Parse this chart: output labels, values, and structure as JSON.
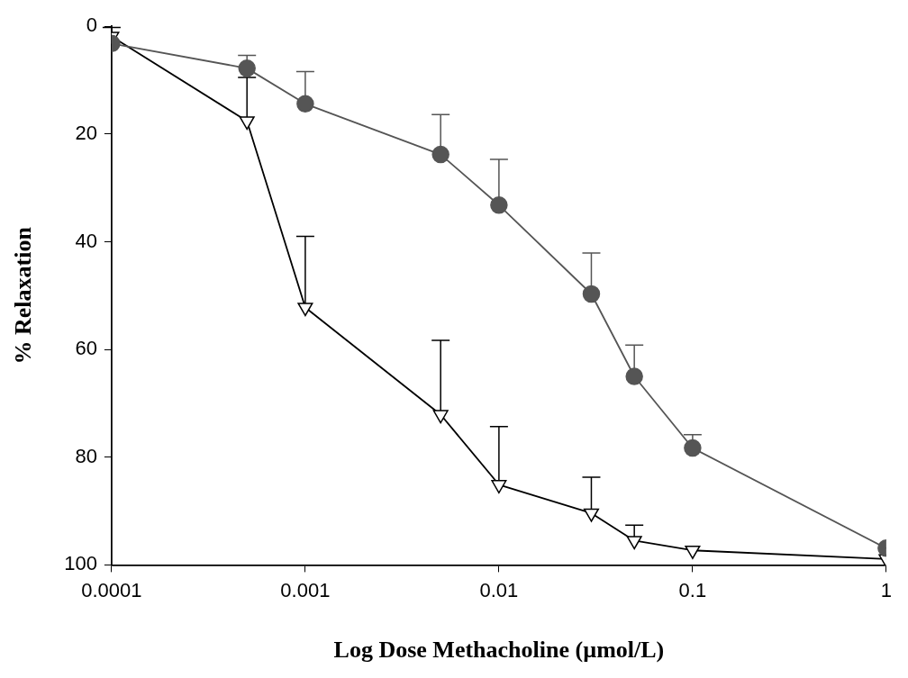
{
  "chart_data": {
    "type": "line",
    "xlabel": "Log Dose Methacholine (µmol/L)",
    "ylabel": "% Relaxation",
    "log": "x",
    "xlim": [
      0.0001,
      1
    ],
    "xticks": [
      0.0001,
      0.001,
      0.01,
      0.1,
      1
    ],
    "ylim": [
      100,
      0
    ],
    "yticks": [
      0,
      20,
      40,
      60,
      80,
      100
    ],
    "grid": false,
    "legend": false,
    "series": [
      {
        "color": "#555555",
        "marker": "circle",
        "x": [
          0.0001,
          0.0005,
          0.001,
          0.005,
          0.01,
          0.03,
          0.05,
          0.1,
          1
        ],
        "values": [
          3.2,
          7.8,
          14.4,
          23.8,
          33.2,
          49.7,
          65,
          78.3,
          96.9
        ],
        "errors": [
          null,
          [
            5.4,
            7.8
          ],
          [
            8.4,
            14.4
          ],
          [
            16.4,
            23.8
          ],
          [
            24.7,
            33.2
          ],
          [
            42.1,
            49.7
          ],
          [
            59.2,
            65
          ],
          [
            75.8,
            78.3
          ],
          null
        ]
      },
      {
        "color": "#000000",
        "marker": "triangle",
        "x": [
          0.0001,
          0.0005,
          0.001,
          0.005,
          0.01,
          0.03,
          0.05,
          0.1,
          1
        ],
        "values": [
          1.9,
          17.6,
          52.2,
          72.1,
          85.1,
          90.4,
          95.5,
          97.3,
          98.9
        ],
        "errors": [
          [
            0.2,
            1.9
          ],
          [
            9.5,
            17.6
          ],
          [
            39,
            52.2
          ],
          [
            58.3,
            72.1
          ],
          [
            74.3,
            85.1
          ],
          [
            83.7,
            90.4
          ],
          [
            92.6,
            95.5
          ],
          null,
          null
        ]
      }
    ]
  }
}
